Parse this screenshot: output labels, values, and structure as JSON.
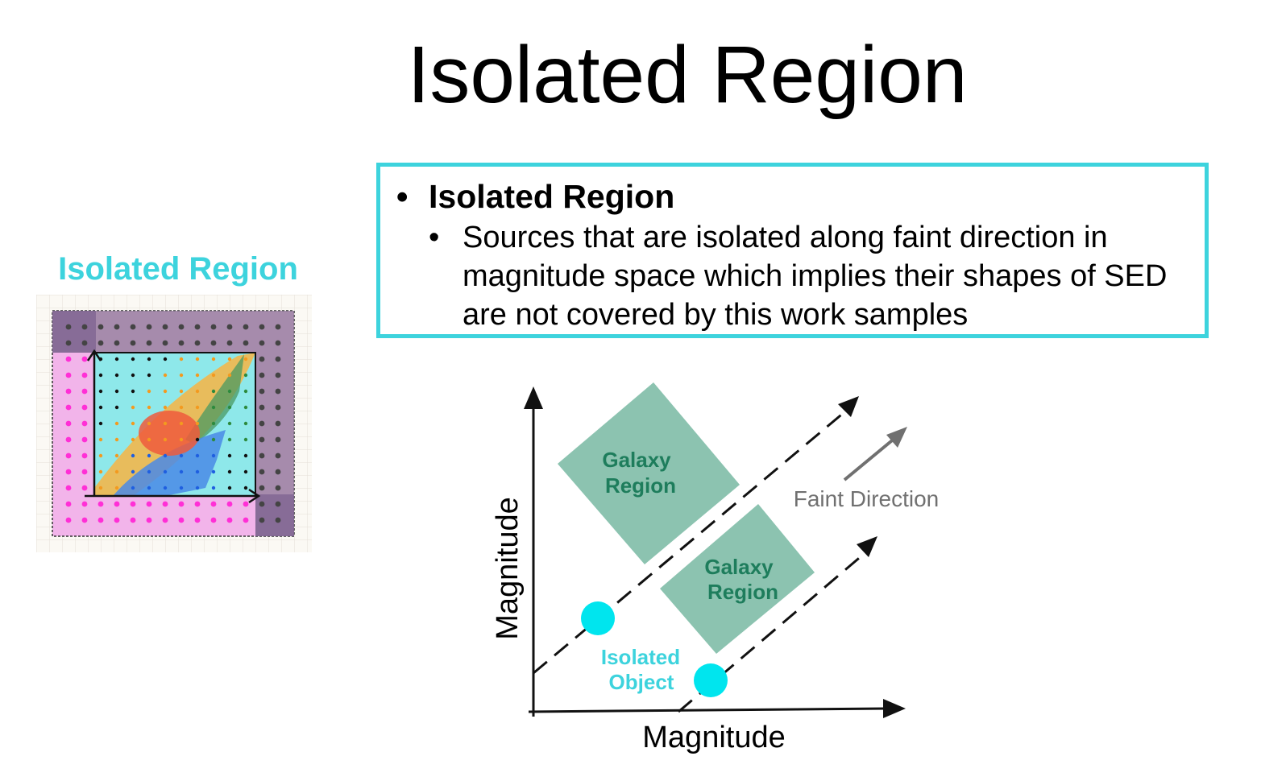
{
  "title": "Isolated Region",
  "sidebar": {
    "heading": "Isolated Region"
  },
  "bullets": {
    "main": "Isolated Region",
    "sub": "Sources that are isolated along faint direction in magnitude space which implies their shapes of SED are not covered by this work samples"
  },
  "diagram": {
    "x_axis_label": "Magnitude",
    "y_axis_label": "Magnitude",
    "galaxy_region_upper": [
      "Galaxy",
      "Region"
    ],
    "galaxy_region_lower": [
      "Galaxy",
      "Region"
    ],
    "faint_direction_label": "Faint Direction",
    "isolated_object_label": [
      "Isolated",
      "Object"
    ]
  },
  "colors": {
    "accent": "#3dd3dd",
    "galaxy_fill": "#8cc3b0",
    "galaxy_text": "#1e7d5c",
    "isolated_dot": "#00e5ee",
    "faint_arrow": "#707070",
    "thumb_magenta": "#ff2fd6",
    "thumb_cyan": "#7ee9ea",
    "thumb_orange": "#f8b443",
    "thumb_red": "#ef5a3c",
    "thumb_blue": "#4a89e6",
    "thumb_green": "#3f9a55",
    "thumb_gray_overlay": "#7f6f8c"
  }
}
